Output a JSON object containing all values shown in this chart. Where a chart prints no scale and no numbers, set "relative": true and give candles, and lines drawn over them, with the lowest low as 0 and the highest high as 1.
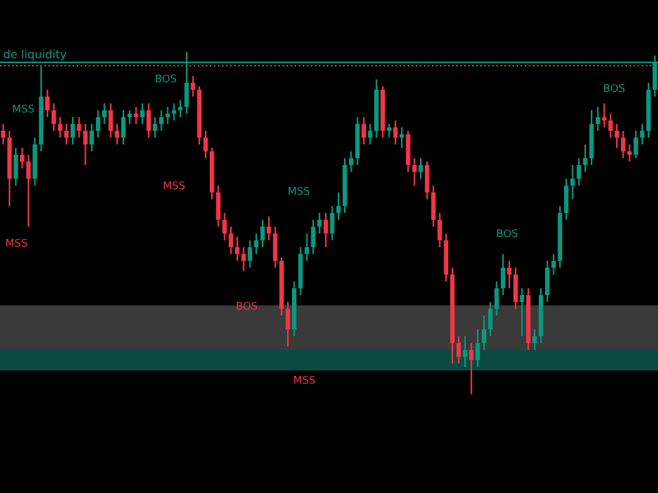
{
  "chart_data": {
    "type": "candlestick",
    "relative": true,
    "categories": [
      null,
      null,
      null,
      null,
      null,
      null,
      null,
      null,
      null,
      null,
      null,
      null,
      null,
      null,
      null,
      null,
      null,
      null,
      null,
      null,
      null,
      null,
      null,
      null,
      null,
      null,
      null,
      null,
      null,
      null,
      null,
      null,
      null,
      null,
      null,
      null,
      null,
      null,
      null,
      null,
      null,
      null,
      null,
      null,
      null,
      null,
      null,
      null,
      null,
      null,
      null,
      null,
      null,
      null,
      null,
      null,
      null,
      null,
      null,
      null,
      null,
      null,
      null,
      null,
      null,
      null,
      null,
      null,
      null,
      null,
      null,
      null,
      null,
      null,
      null,
      null,
      null,
      null,
      null,
      null,
      null,
      null,
      null,
      null,
      null,
      null,
      null,
      null,
      null,
      null,
      null,
      null,
      null,
      null,
      null,
      null,
      null,
      null,
      null,
      null,
      null,
      null,
      null,
      null
    ],
    "ohlc": [
      [
        0.77,
        0.79,
        0.73,
        0.75
      ],
      [
        0.75,
        0.77,
        0.55,
        0.63
      ],
      [
        0.63,
        0.72,
        0.61,
        0.7
      ],
      [
        0.7,
        0.72,
        0.66,
        0.68
      ],
      [
        0.68,
        0.7,
        0.49,
        0.63
      ],
      [
        0.63,
        0.75,
        0.61,
        0.73
      ],
      [
        0.73,
        0.96,
        0.71,
        0.87
      ],
      [
        0.87,
        0.89,
        0.81,
        0.83
      ],
      [
        0.83,
        0.85,
        0.77,
        0.79
      ],
      [
        0.79,
        0.81,
        0.75,
        0.77
      ],
      [
        0.77,
        0.79,
        0.73,
        0.75
      ],
      [
        0.75,
        0.81,
        0.73,
        0.79
      ],
      [
        0.79,
        0.81,
        0.75,
        0.77
      ],
      [
        0.77,
        0.79,
        0.67,
        0.73
      ],
      [
        0.73,
        0.79,
        0.71,
        0.77
      ],
      [
        0.77,
        0.83,
        0.75,
        0.81
      ],
      [
        0.81,
        0.85,
        0.79,
        0.83
      ],
      [
        0.83,
        0.85,
        0.75,
        0.77
      ],
      [
        0.77,
        0.79,
        0.73,
        0.75
      ],
      [
        0.75,
        0.83,
        0.73,
        0.81
      ],
      [
        0.81,
        0.83,
        0.79,
        0.82
      ],
      [
        0.82,
        0.84,
        0.79,
        0.81
      ],
      [
        0.81,
        0.85,
        0.79,
        0.83
      ],
      [
        0.83,
        0.85,
        0.75,
        0.77
      ],
      [
        0.77,
        0.81,
        0.75,
        0.79
      ],
      [
        0.79,
        0.83,
        0.77,
        0.81
      ],
      [
        0.81,
        0.84,
        0.79,
        0.82
      ],
      [
        0.82,
        0.85,
        0.8,
        0.83
      ],
      [
        0.83,
        0.86,
        0.81,
        0.84
      ],
      [
        0.84,
        1.0,
        0.82,
        0.91
      ],
      [
        0.91,
        0.93,
        0.87,
        0.89
      ],
      [
        0.89,
        0.9,
        0.73,
        0.75
      ],
      [
        0.75,
        0.77,
        0.69,
        0.71
      ],
      [
        0.71,
        0.72,
        0.57,
        0.59
      ],
      [
        0.59,
        0.61,
        0.49,
        0.51
      ],
      [
        0.51,
        0.53,
        0.45,
        0.47
      ],
      [
        0.47,
        0.49,
        0.41,
        0.43
      ],
      [
        0.43,
        0.46,
        0.39,
        0.41
      ],
      [
        0.41,
        0.43,
        0.36,
        0.39
      ],
      [
        0.39,
        0.45,
        0.37,
        0.43
      ],
      [
        0.43,
        0.47,
        0.41,
        0.45
      ],
      [
        0.45,
        0.51,
        0.43,
        0.49
      ],
      [
        0.49,
        0.52,
        0.45,
        0.47
      ],
      [
        0.47,
        0.49,
        0.37,
        0.39
      ],
      [
        0.39,
        0.4,
        0.23,
        0.25
      ],
      [
        0.25,
        0.27,
        0.14,
        0.19
      ],
      [
        0.19,
        0.33,
        0.17,
        0.31
      ],
      [
        0.31,
        0.43,
        0.29,
        0.41
      ],
      [
        0.41,
        0.47,
        0.39,
        0.43
      ],
      [
        0.43,
        0.51,
        0.41,
        0.49
      ],
      [
        0.49,
        0.53,
        0.47,
        0.51
      ],
      [
        0.51,
        0.53,
        0.43,
        0.47
      ],
      [
        0.47,
        0.55,
        0.45,
        0.53
      ],
      [
        0.53,
        0.59,
        0.51,
        0.55
      ],
      [
        0.55,
        0.69,
        0.53,
        0.67
      ],
      [
        0.67,
        0.71,
        0.65,
        0.69
      ],
      [
        0.69,
        0.81,
        0.67,
        0.79
      ],
      [
        0.79,
        0.81,
        0.73,
        0.75
      ],
      [
        0.75,
        0.79,
        0.73,
        0.77
      ],
      [
        0.77,
        0.92,
        0.75,
        0.89
      ],
      [
        0.89,
        0.9,
        0.75,
        0.77
      ],
      [
        0.77,
        0.79,
        0.75,
        0.78
      ],
      [
        0.78,
        0.8,
        0.73,
        0.75
      ],
      [
        0.75,
        0.78,
        0.72,
        0.76
      ],
      [
        0.76,
        0.77,
        0.65,
        0.67
      ],
      [
        0.67,
        0.69,
        0.61,
        0.65
      ],
      [
        0.65,
        0.69,
        0.63,
        0.67
      ],
      [
        0.67,
        0.68,
        0.57,
        0.59
      ],
      [
        0.59,
        0.61,
        0.49,
        0.51
      ],
      [
        0.51,
        0.53,
        0.43,
        0.45
      ],
      [
        0.45,
        0.47,
        0.33,
        0.35
      ],
      [
        0.35,
        0.37,
        0.09,
        0.15
      ],
      [
        0.15,
        0.17,
        0.09,
        0.11
      ],
      [
        0.11,
        0.17,
        0.08,
        0.13
      ],
      [
        0.13,
        0.15,
        0.0,
        0.1
      ],
      [
        0.1,
        0.19,
        0.08,
        0.15
      ],
      [
        0.15,
        0.23,
        0.13,
        0.19
      ],
      [
        0.19,
        0.27,
        0.17,
        0.25
      ],
      [
        0.25,
        0.33,
        0.23,
        0.31
      ],
      [
        0.31,
        0.41,
        0.29,
        0.37
      ],
      [
        0.37,
        0.39,
        0.31,
        0.35
      ],
      [
        0.35,
        0.37,
        0.25,
        0.27
      ],
      [
        0.27,
        0.31,
        0.17,
        0.29
      ],
      [
        0.29,
        0.31,
        0.13,
        0.15
      ],
      [
        0.15,
        0.19,
        0.13,
        0.17
      ],
      [
        0.17,
        0.31,
        0.15,
        0.29
      ],
      [
        0.29,
        0.39,
        0.27,
        0.37
      ],
      [
        0.37,
        0.41,
        0.35,
        0.39
      ],
      [
        0.39,
        0.55,
        0.37,
        0.53
      ],
      [
        0.53,
        0.63,
        0.51,
        0.61
      ],
      [
        0.61,
        0.67,
        0.57,
        0.63
      ],
      [
        0.63,
        0.69,
        0.61,
        0.67
      ],
      [
        0.67,
        0.73,
        0.65,
        0.69
      ],
      [
        0.69,
        0.83,
        0.67,
        0.79
      ],
      [
        0.79,
        0.84,
        0.77,
        0.81
      ],
      [
        0.81,
        0.85,
        0.78,
        0.8
      ],
      [
        0.8,
        0.82,
        0.75,
        0.77
      ],
      [
        0.77,
        0.79,
        0.72,
        0.75
      ],
      [
        0.75,
        0.77,
        0.69,
        0.71
      ],
      [
        0.71,
        0.73,
        0.68,
        0.7
      ],
      [
        0.7,
        0.77,
        0.69,
        0.75
      ],
      [
        0.75,
        0.79,
        0.73,
        0.77
      ],
      [
        0.77,
        0.91,
        0.75,
        0.89
      ],
      [
        0.89,
        0.99,
        0.87,
        0.97
      ]
    ],
    "ref_lines": [
      {
        "axis": "y",
        "value": 0.97,
        "label": "de liquidity",
        "color": "#089981",
        "line_style": "solid"
      },
      {
        "axis": "y",
        "value": 0.96,
        "color": "#f23645",
        "line_style": "dotted"
      }
    ],
    "bands": [
      {
        "axis": "y",
        "from": 0.13,
        "to": 0.26,
        "color": "#3a3a3a"
      },
      {
        "axis": "y",
        "from": 0.07,
        "to": 0.13,
        "color": "#0b4a40"
      }
    ],
    "annotations": [
      "MSS",
      "MSS",
      "BOS",
      "MSS",
      "BOS",
      "MSS",
      "MSS",
      "BOS",
      "BOS"
    ]
  }
}
